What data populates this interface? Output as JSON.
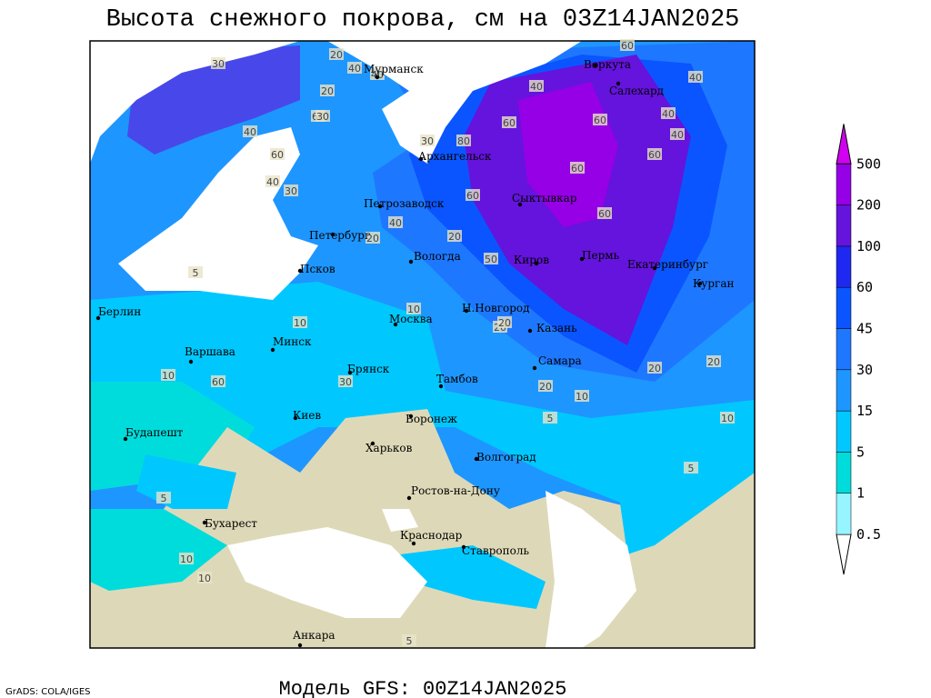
{
  "header": {
    "title": "Высота снежного покрова, см на 03Z14JAN2025"
  },
  "footer": {
    "model": "Модель GFS: 00Z14JAN2025",
    "credit": "GrADS: COLA/IGES"
  },
  "colorbar": {
    "levels": [
      0.5,
      1,
      5,
      15,
      30,
      45,
      60,
      100,
      200,
      500
    ],
    "colors": [
      "#ffffff",
      "#96f5ff",
      "#00dcdc",
      "#00c8ff",
      "#1e96ff",
      "#1e78ff",
      "#0a55ff",
      "#1e28f0",
      "#6414dc",
      "#9600e6",
      "#d200f0"
    ]
  },
  "map": {
    "cities": [
      "Мурманск",
      "Воркута",
      "Салехард",
      "Архангельск",
      "Петрозаводск",
      "Сыктывкар",
      "Петербург",
      "Вологда",
      "Киров",
      "Пермь",
      "Екатеринбург",
      "Курган",
      "Псков",
      "Н.Новгород",
      "Москва",
      "Казань",
      "Берлин",
      "Варшава",
      "Минск",
      "Брянск",
      "Тамбов",
      "Самара",
      "Воронеж",
      "Киев",
      "Будапешт",
      "Харьков",
      "Волгоград",
      "Ростов-на-Дону",
      "Бухарест",
      "Краснодар",
      "Ставрополь",
      "Анкара"
    ],
    "contour_labels": [
      40,
      20,
      60,
      60,
      40,
      30,
      30,
      20,
      60,
      20,
      20,
      60,
      30,
      40,
      80,
      60,
      40,
      60,
      40,
      60,
      50,
      60,
      30,
      40,
      60,
      40,
      60,
      40,
      20,
      40,
      30,
      10,
      5,
      10,
      10,
      20,
      20,
      20,
      20,
      10,
      5,
      10,
      5,
      5,
      10,
      10,
      5
    ]
  }
}
